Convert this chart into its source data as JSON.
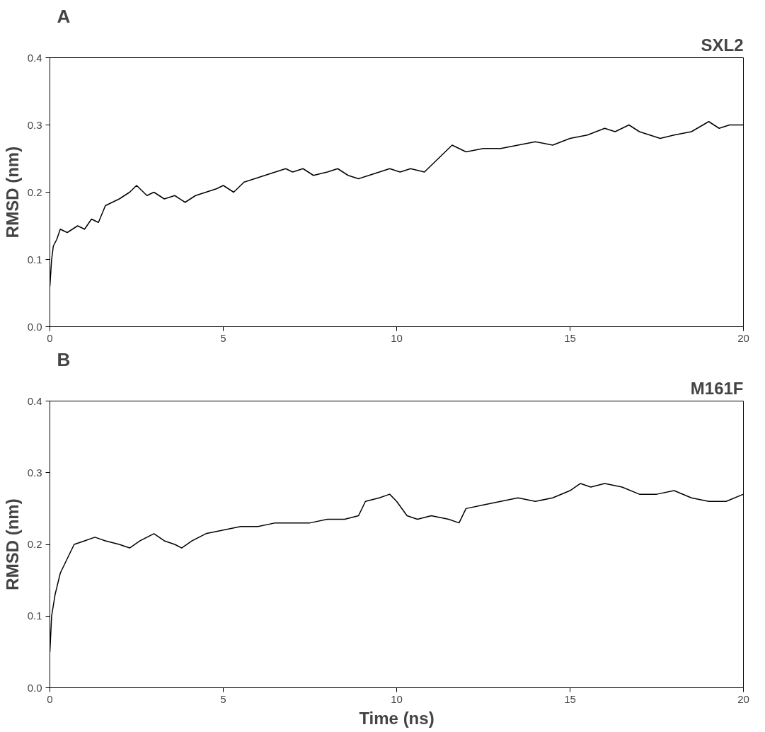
{
  "chart_data": [
    {
      "type": "line",
      "title": "A",
      "subtitle": "SXL2",
      "ylabel": "RMSD (nm)",
      "xlim": [
        0,
        20
      ],
      "ylim": [
        0,
        0.4
      ],
      "xticks": [
        0,
        5,
        10,
        15,
        20
      ],
      "yticks": [
        {
          "value": 0,
          "label": "0.0"
        },
        {
          "value": 0.1,
          "label": "0.1"
        },
        {
          "value": 0.2,
          "label": "0.2"
        },
        {
          "value": 0.3,
          "label": "0.3"
        },
        {
          "value": 0.4,
          "label": "0.4"
        }
      ],
      "grid": false,
      "series": [
        {
          "color": "#000000",
          "x": [
            0,
            0.05,
            0.1,
            0.2,
            0.3,
            0.5,
            0.8,
            1.0,
            1.2,
            1.4,
            1.6,
            1.8,
            2.0,
            2.3,
            2.5,
            2.8,
            3.0,
            3.3,
            3.6,
            3.9,
            4.2,
            4.5,
            4.8,
            5.0,
            5.3,
            5.6,
            5.9,
            6.2,
            6.5,
            6.8,
            7.0,
            7.3,
            7.6,
            8.0,
            8.3,
            8.6,
            8.9,
            9.2,
            9.5,
            9.8,
            10.1,
            10.4,
            10.8,
            11.0,
            11.3,
            11.6,
            12.0,
            12.5,
            13.0,
            13.5,
            14.0,
            14.5,
            15.0,
            15.5,
            16.0,
            16.3,
            16.7,
            17.0,
            17.3,
            17.6,
            18.0,
            18.5,
            19.0,
            19.3,
            19.6,
            20.0
          ],
          "values": [
            0.06,
            0.1,
            0.12,
            0.13,
            0.145,
            0.14,
            0.15,
            0.145,
            0.16,
            0.155,
            0.18,
            0.185,
            0.19,
            0.2,
            0.21,
            0.195,
            0.2,
            0.19,
            0.195,
            0.185,
            0.195,
            0.2,
            0.205,
            0.21,
            0.2,
            0.215,
            0.22,
            0.225,
            0.23,
            0.235,
            0.23,
            0.235,
            0.225,
            0.23,
            0.235,
            0.225,
            0.22,
            0.225,
            0.23,
            0.235,
            0.23,
            0.235,
            0.23,
            0.24,
            0.255,
            0.27,
            0.26,
            0.265,
            0.265,
            0.27,
            0.275,
            0.27,
            0.28,
            0.285,
            0.295,
            0.29,
            0.3,
            0.29,
            0.285,
            0.28,
            0.285,
            0.29,
            0.305,
            0.295,
            0.3,
            0.3
          ]
        }
      ]
    },
    {
      "type": "line",
      "title": "B",
      "subtitle": "M161F",
      "xlabel": "Time (ns)",
      "ylabel": "RMSD (nm)",
      "xlim": [
        0,
        20
      ],
      "ylim": [
        0,
        0.4
      ],
      "xticks": [
        0,
        5,
        10,
        15,
        20
      ],
      "yticks": [
        {
          "value": 0,
          "label": "0.0"
        },
        {
          "value": 0.1,
          "label": "0.1"
        },
        {
          "value": 0.2,
          "label": "0.2"
        },
        {
          "value": 0.3,
          "label": "0.3"
        },
        {
          "value": 0.4,
          "label": "0.4"
        }
      ],
      "grid": false,
      "series": [
        {
          "color": "#000000",
          "x": [
            0,
            0.05,
            0.15,
            0.3,
            0.5,
            0.7,
            1.0,
            1.3,
            1.6,
            2.0,
            2.3,
            2.6,
            3.0,
            3.3,
            3.6,
            3.8,
            4.1,
            4.5,
            5.0,
            5.5,
            6.0,
            6.5,
            7.0,
            7.5,
            8.0,
            8.5,
            8.9,
            9.1,
            9.5,
            9.8,
            10.0,
            10.3,
            10.6,
            11.0,
            11.5,
            11.8,
            12.0,
            12.5,
            13.0,
            13.5,
            14.0,
            14.5,
            15.0,
            15.3,
            15.6,
            16.0,
            16.5,
            17.0,
            17.5,
            18.0,
            18.5,
            19.0,
            19.5,
            20.0
          ],
          "values": [
            0.05,
            0.1,
            0.13,
            0.16,
            0.18,
            0.2,
            0.205,
            0.21,
            0.205,
            0.2,
            0.195,
            0.205,
            0.215,
            0.205,
            0.2,
            0.195,
            0.205,
            0.215,
            0.22,
            0.225,
            0.225,
            0.23,
            0.23,
            0.23,
            0.235,
            0.235,
            0.24,
            0.26,
            0.265,
            0.27,
            0.26,
            0.24,
            0.235,
            0.24,
            0.235,
            0.23,
            0.25,
            0.255,
            0.26,
            0.265,
            0.26,
            0.265,
            0.275,
            0.285,
            0.28,
            0.285,
            0.28,
            0.27,
            0.27,
            0.275,
            0.265,
            0.26,
            0.26,
            0.27
          ]
        }
      ]
    }
  ]
}
